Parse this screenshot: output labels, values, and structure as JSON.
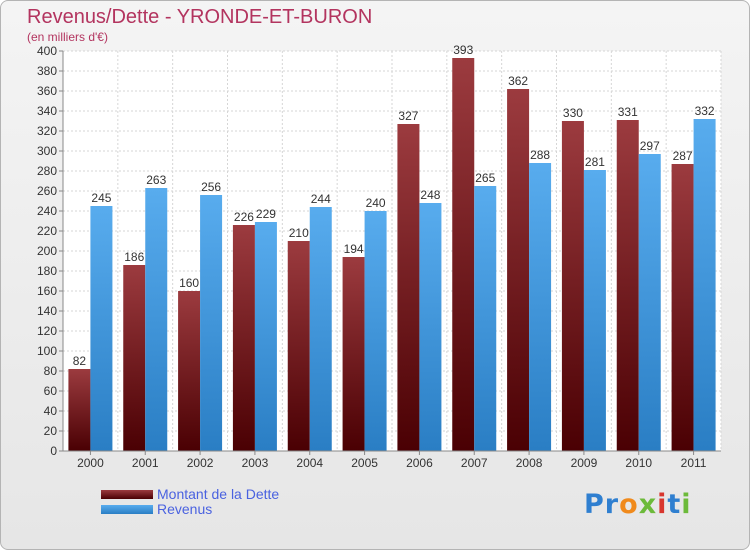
{
  "chart_data": {
    "type": "bar",
    "title": "Revenus/Dette - YRONDE-ET-BURON",
    "subtitle": "(en milliers d'€)",
    "categories": [
      "2000",
      "2001",
      "2002",
      "2003",
      "2004",
      "2005",
      "2006",
      "2007",
      "2008",
      "2009",
      "2010",
      "2011"
    ],
    "series": [
      {
        "name": "Montant de la Dette",
        "values": [
          82,
          186,
          160,
          226,
          210,
          194,
          327,
          393,
          362,
          330,
          331,
          287
        ],
        "color": "#7a1a1f"
      },
      {
        "name": "Revenus",
        "values": [
          245,
          263,
          256,
          229,
          244,
          240,
          248,
          265,
          288,
          281,
          297,
          332
        ],
        "color": "#3d97df"
      }
    ],
    "ylim": [
      0,
      400
    ],
    "ytick_step": 20,
    "grid": true,
    "legend_position": "bottom-left"
  },
  "brand": {
    "letters": [
      "P",
      "r",
      "o",
      "x",
      "i",
      "t",
      "i"
    ]
  }
}
